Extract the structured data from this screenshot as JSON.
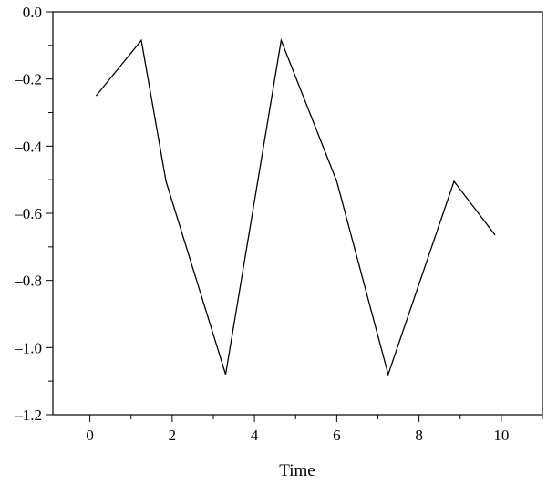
{
  "chart_data": {
    "type": "line",
    "title": "",
    "xlabel": "Time",
    "ylabel": "",
    "xlim": [
      -0.9,
      11.0
    ],
    "ylim": [
      -1.2,
      0.0
    ],
    "x_ticks": [
      0,
      2,
      4,
      6,
      8,
      10
    ],
    "x_tick_labels": [
      "0",
      "2",
      "4",
      "6",
      "8",
      "10"
    ],
    "y_ticks": [
      0.0,
      -0.2,
      -0.4,
      -0.6,
      -0.8,
      -1.0,
      -1.2
    ],
    "y_tick_labels": [
      "0.0",
      "–0.2",
      "–0.4",
      "–0.6",
      "–0.8",
      "–1.0",
      "–1.2"
    ],
    "grid": false,
    "series": [
      {
        "color": "#000000",
        "x": [
          0.15,
          1.25,
          1.85,
          3.3,
          4.65,
          6.0,
          7.25,
          8.85,
          9.85
        ],
        "y": [
          -0.25,
          -0.085,
          -0.505,
          -1.08,
          -0.085,
          -0.505,
          -1.08,
          -0.505,
          -0.665
        ]
      }
    ]
  }
}
